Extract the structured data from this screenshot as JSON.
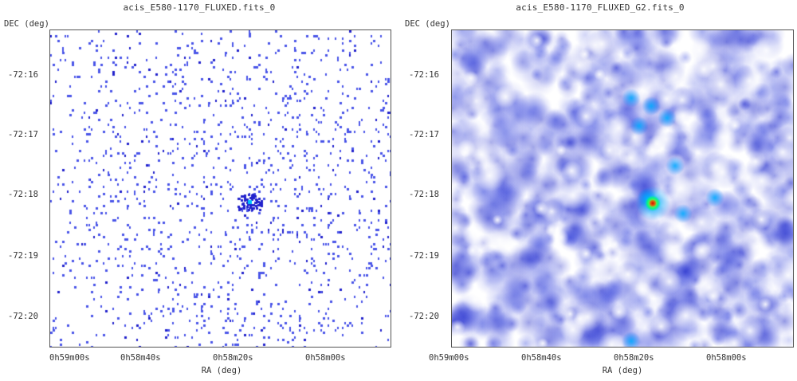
{
  "panels": [
    {
      "title": "acis_E580-1170_FLUXED.fits_0",
      "kind": "counts",
      "dec_label": "DEC (deg)",
      "ra_label": "RA (deg)",
      "yticks": [
        "-72:16",
        "-72:17",
        "-72:18",
        "-72:19",
        "-72:20"
      ],
      "xticks": [
        "0h59m00s",
        "0h58m40s",
        "0h58m20s",
        "0h58m00s"
      ]
    },
    {
      "title": "acis_E580-1170_FLUXED_G2.fits_0",
      "kind": "smoothed",
      "dec_label": "DEC (deg)",
      "ra_label": "RA (deg)",
      "yticks": [
        "-72:16",
        "-72:17",
        "-72:18",
        "-72:19",
        "-72:20"
      ],
      "xticks": [
        "0h59m00s",
        "0h58m40s",
        "0h58m20s",
        "0h58m00s"
      ]
    }
  ],
  "colors": {
    "pixel_blue": "#4a55e8",
    "pixel_dark": "#2222cc",
    "source_core": "#cc0000",
    "source_ring": "#ffd000",
    "source_cyan": "#00c0ff"
  }
}
